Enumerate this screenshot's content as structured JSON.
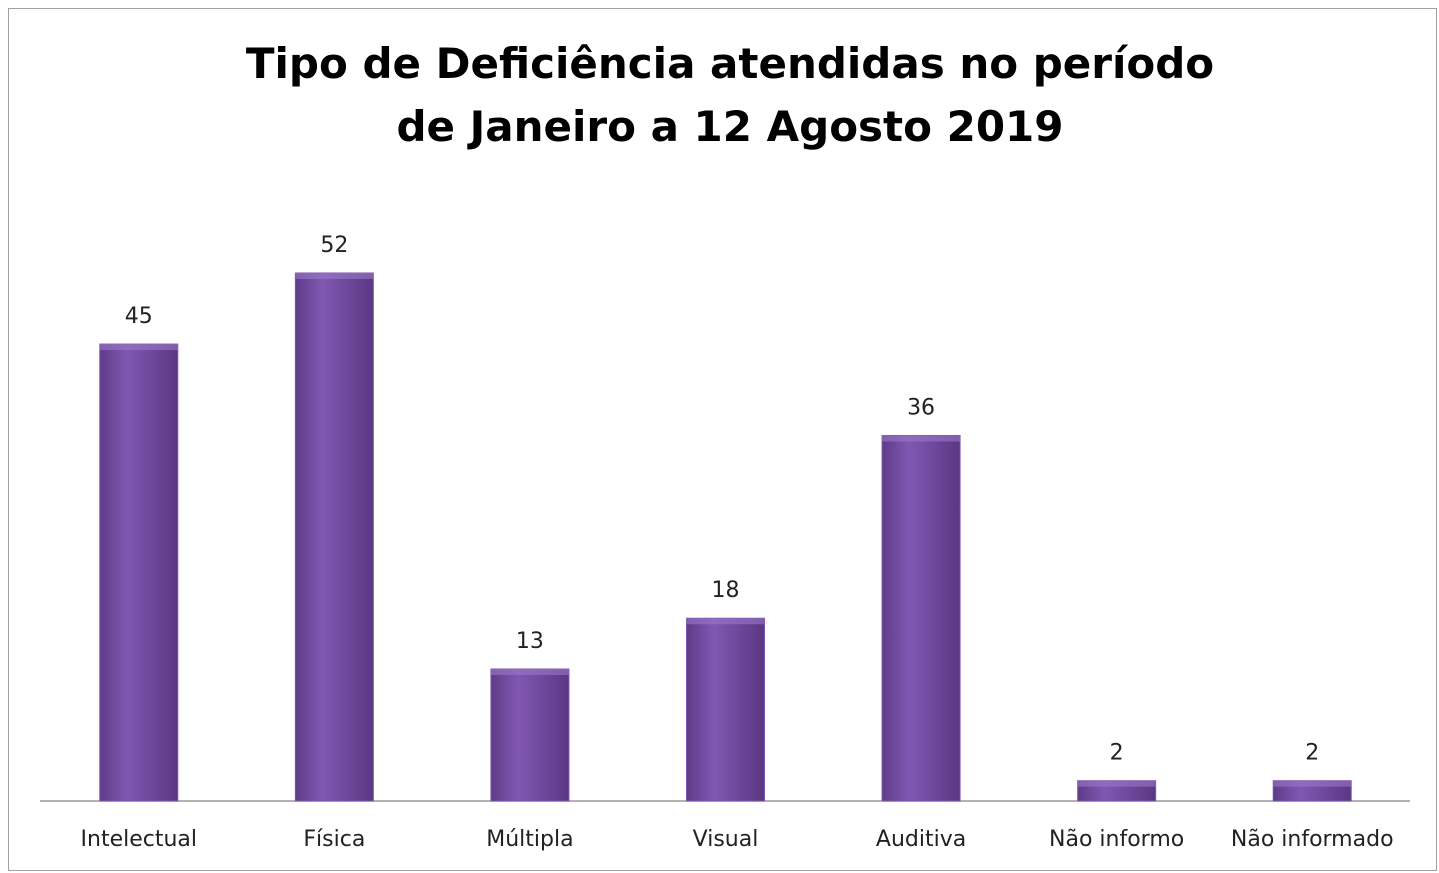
{
  "chart_data": {
    "type": "bar",
    "title": "Tipo de Deficiência atendidas no período de Janeiro a 12 Agosto 2019",
    "categories": [
      "Intelectual",
      "Física",
      "Múltipla",
      "Visual",
      "Auditiva",
      "Não informo",
      "Não informado"
    ],
    "values": [
      45,
      52,
      13,
      18,
      36,
      2,
      2
    ],
    "color": "#7b55aa"
  }
}
